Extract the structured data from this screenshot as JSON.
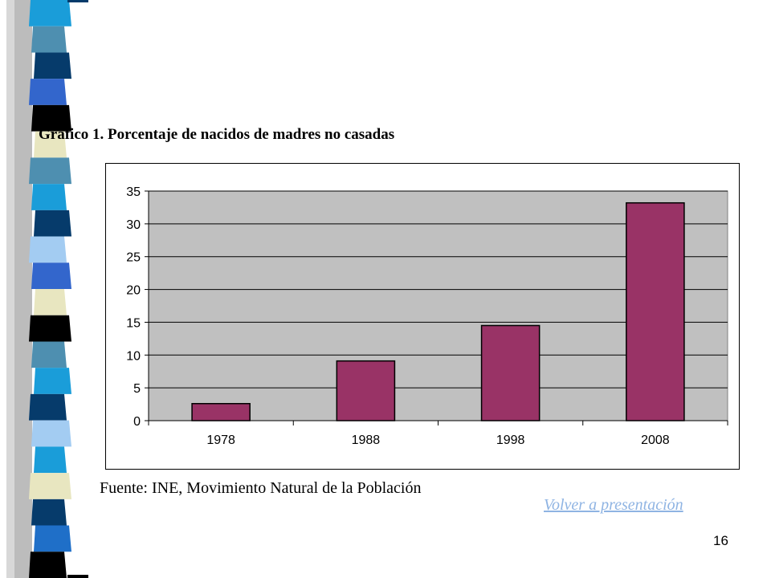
{
  "slide": {
    "source_note": "Fuente: INE, Movimiento Natural de la Población",
    "back_link": "Volver a presentación",
    "page_number": "16",
    "decor_palette": [
      "#1a9dd9",
      "#4e8fb0",
      "#063b6b",
      "#3366cc",
      "#000000",
      "#e8e6c0",
      "#a3ccf2",
      "#1f6fc8"
    ]
  },
  "chart_data": {
    "type": "bar",
    "title": "Gráfico 1. Porcentaje de nacidos de madres no casadas",
    "categories": [
      "1978",
      "1988",
      "1998",
      "2008"
    ],
    "values": [
      2.6,
      9.1,
      14.5,
      33.2
    ],
    "ylim": [
      0,
      35
    ],
    "yticks": [
      "0",
      "5",
      "10",
      "15",
      "20",
      "25",
      "30",
      "35"
    ],
    "grid": true,
    "legend": "none",
    "colors": {
      "bar": "#993366",
      "plot_bg": "#c0c0c0",
      "grid": "#000000"
    }
  }
}
